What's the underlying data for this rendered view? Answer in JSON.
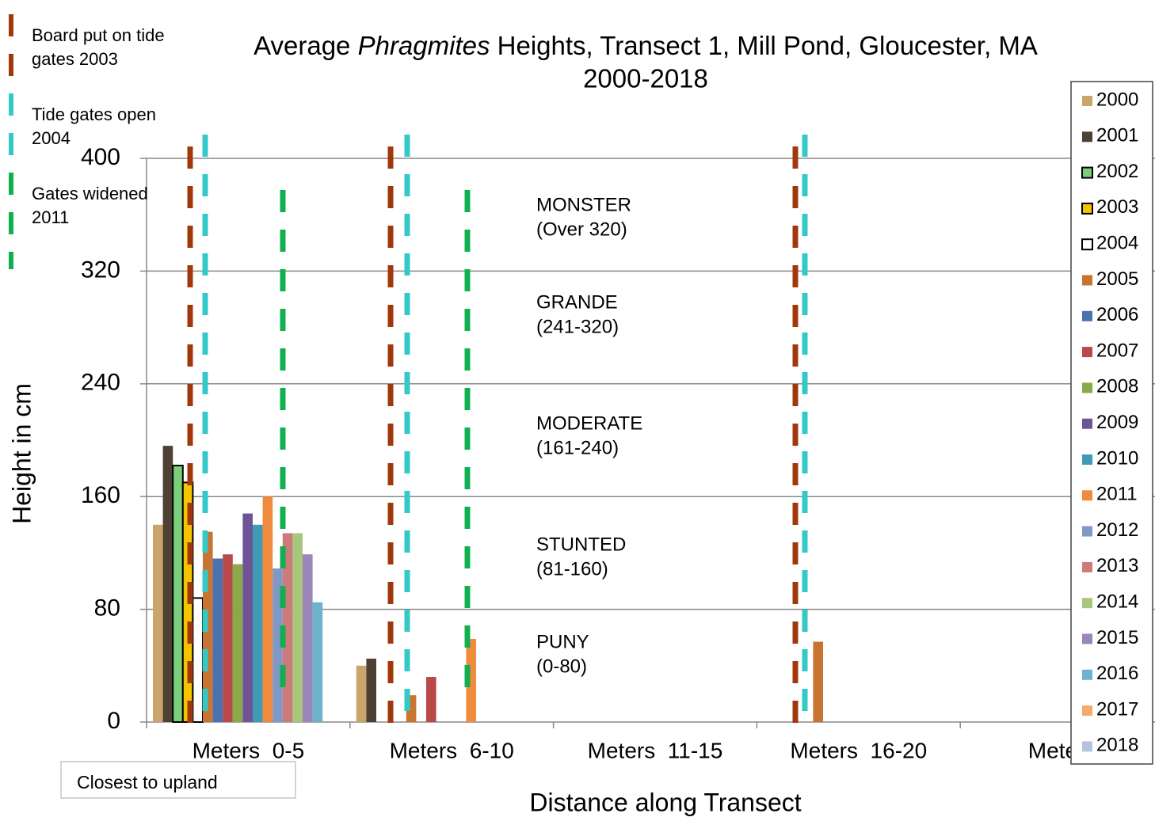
{
  "chart_data": {
    "type": "bar",
    "title": "Average Phragmites Heights, Transect 1, Mill Pond, Gloucester, MA",
    "title_italic": "Phragmites",
    "subtitle": "2000-2018",
    "y_label": "Height in cm",
    "x_label": "Distance along Transect",
    "note": "Closest to upland",
    "categories": [
      "Meters  0-5",
      "Meters  6-10",
      "Meters  11-15",
      "Meters  16-20",
      "Meters"
    ],
    "ylim": [
      0,
      400
    ],
    "yticks": [
      0,
      80,
      160,
      240,
      320,
      400
    ],
    "grid": true,
    "series": [
      {
        "name": "2000",
        "color": "#c9a56a",
        "values": [
          140,
          40,
          null,
          null,
          null
        ]
      },
      {
        "name": "2001",
        "color": "#4e4033",
        "values": [
          196,
          45,
          null,
          null,
          null
        ]
      },
      {
        "name": "2002",
        "color": "#7ccf7a",
        "edgecolor": "#000000",
        "values": [
          182,
          null,
          null,
          null,
          null
        ]
      },
      {
        "name": "2003",
        "color": "#f5c400",
        "edgecolor": "#000000",
        "values": [
          170,
          null,
          null,
          null,
          null
        ]
      },
      {
        "name": "2004",
        "color": "#ffffff",
        "edgecolor": "#000000",
        "values": [
          88,
          null,
          null,
          null,
          null
        ]
      },
      {
        "name": "2005",
        "color": "#c87533",
        "values": [
          135,
          19,
          null,
          57,
          null
        ]
      },
      {
        "name": "2006",
        "color": "#4a72b0",
        "values": [
          116,
          null,
          null,
          null,
          null
        ]
      },
      {
        "name": "2007",
        "color": "#b84a4a",
        "values": [
          119,
          32,
          null,
          null,
          null
        ]
      },
      {
        "name": "2008",
        "color": "#8aaa4a",
        "values": [
          112,
          null,
          null,
          null,
          null
        ]
      },
      {
        "name": "2009",
        "color": "#6e5497",
        "values": [
          148,
          null,
          null,
          null,
          null
        ]
      },
      {
        "name": "2010",
        "color": "#3e9ab5",
        "values": [
          140,
          null,
          null,
          null,
          null
        ]
      },
      {
        "name": "2011",
        "color": "#f08a3c",
        "values": [
          160,
          59,
          null,
          null,
          null
        ]
      },
      {
        "name": "2012",
        "color": "#7f98c8",
        "values": [
          109,
          null,
          null,
          null,
          null
        ]
      },
      {
        "name": "2013",
        "color": "#cc7b7b",
        "values": [
          134,
          null,
          null,
          null,
          null
        ]
      },
      {
        "name": "2014",
        "color": "#a9c77c",
        "values": [
          134,
          null,
          null,
          null,
          null
        ]
      },
      {
        "name": "2015",
        "color": "#9a86b8",
        "values": [
          119,
          null,
          null,
          null,
          null
        ]
      },
      {
        "name": "2016",
        "color": "#6cb4cc",
        "values": [
          85,
          null,
          null,
          null,
          null
        ]
      },
      {
        "name": "2017",
        "color": "#f5a96a",
        "values": [
          null,
          null,
          null,
          null,
          null
        ]
      },
      {
        "name": "2018",
        "color": "#b4c4e0",
        "values": [
          null,
          null,
          null,
          null,
          null
        ]
      }
    ],
    "zones": [
      {
        "name": "MONSTER",
        "range": "(Over 320)"
      },
      {
        "name": "GRANDE",
        "range": "(241-320)"
      },
      {
        "name": "MODERATE",
        "range": "(161-240)"
      },
      {
        "name": "STUNTED",
        "range": "(81-160)"
      },
      {
        "name": "PUNY",
        "range": "(0-80)"
      }
    ],
    "events": [
      {
        "label": "Board put on tide gates 2003",
        "color": "#a0380c"
      },
      {
        "label": "Tide gates open 2004",
        "color": "#33c9c9"
      },
      {
        "label": "Gates widened 2011",
        "color": "#10b050"
      }
    ]
  }
}
